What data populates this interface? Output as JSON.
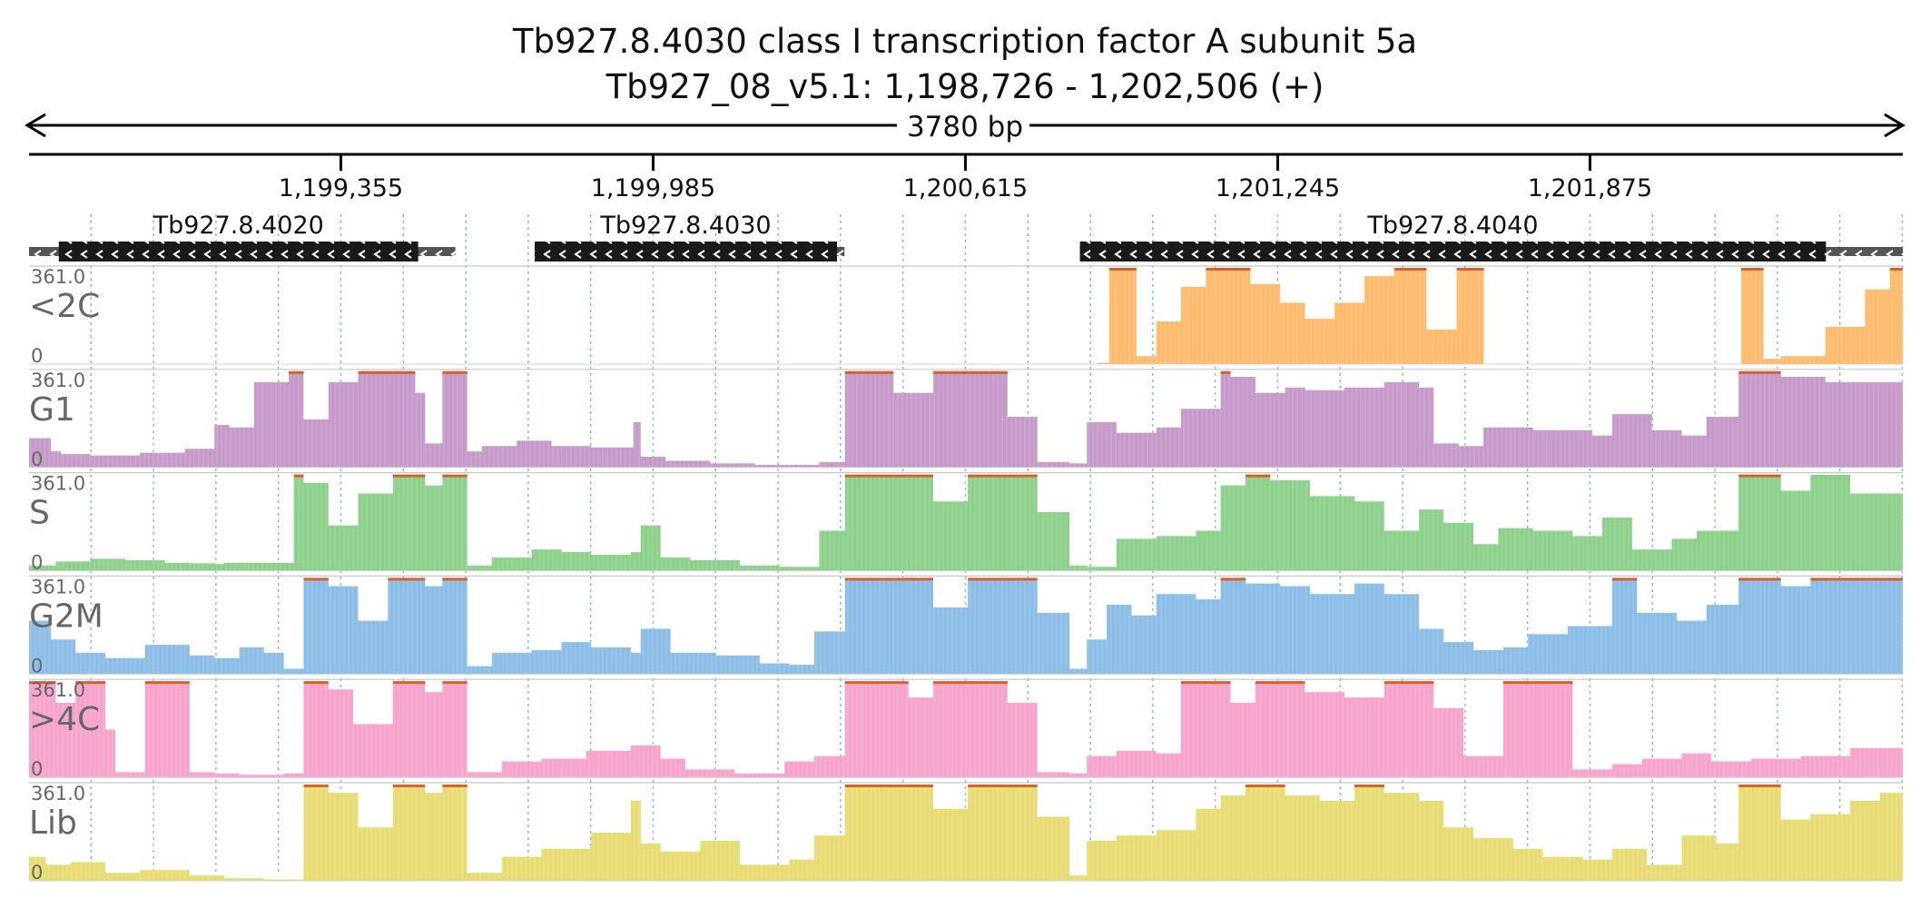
{
  "title": "Tb927.8.4030  class I transcription factor A  subunit 5a",
  "subtitle": "Tb927_08_v5.1: 1,198,726 - 1,202,506 (+)",
  "span_label": "3780 bp",
  "chart_data": {
    "type": "bar",
    "genomic_range": [
      1198726,
      1202506
    ],
    "x_ticks": [
      1199355,
      1199985,
      1200615,
      1201245,
      1201875
    ],
    "x_tick_labels": [
      "1,199,355",
      "1,199,985",
      "1,200,615",
      "1,201,245",
      "1,201,875"
    ],
    "genes": [
      {
        "name": "Tb927.8.4020",
        "utr": [
          1198726,
          1199586
        ],
        "cds": [
          1198786,
          1199511
        ],
        "strand": "-"
      },
      {
        "name": "Tb927.8.4030",
        "utr": [
          1199746,
          1200371
        ],
        "cds": [
          1199746,
          1200356
        ],
        "strand": "-"
      },
      {
        "name": "Tb927.8.4040",
        "utr": [
          1200846,
          1202506
        ],
        "cds": [
          1200846,
          1202351
        ],
        "strand": "-"
      }
    ],
    "ylim": [
      0,
      361.0
    ],
    "y_max_label": "361.0",
    "y_min_label": "0",
    "series": [
      {
        "name": "<2C",
        "color": "#fdbb6d",
        "clip_color": "#d7612a",
        "segments": [
          {
            "x": [
              1200766,
              1200866,
              1200880,
              1201150,
              1201300,
              1201400,
              1201440,
              1201500,
              1201560
            ],
            "y": [
              0,
              0,
              5,
              8,
              6,
              5,
              4,
              3,
              0
            ]
          },
          {
            "x": [
              1200826,
              1200900,
              1200905,
              1200915,
              1200960,
              1201000,
              1201050,
              1201100,
              1201140,
              1201190,
              1201250,
              1201300,
              1201360,
              1201420,
              1201480,
              1201530,
              1201545,
              1201600,
              1201606,
              1201660,
              1201661
            ],
            "y": [
              0,
              0,
              361,
              361,
              30,
              160,
              290,
              361,
              361,
              300,
              230,
              170,
              230,
              330,
              361,
              361,
              130,
              130,
              361,
              361,
              0
            ]
          },
          {
            "x": [
              1202176,
              1202180,
              1202220,
              1202225,
              1202260,
              1202350,
              1202430,
              1202480,
              1202506
            ],
            "y": [
              0,
              361,
              361,
              20,
              30,
              140,
              280,
              361,
              361
            ]
          }
        ]
      },
      {
        "name": "G1",
        "color": "#c59ac9",
        "clip_color": "#d7612a",
        "x": [
          1198726,
          1198770,
          1198790,
          1198850,
          1198950,
          1199040,
          1199100,
          1199130,
          1199180,
          1199250,
          1199280,
          1199330,
          1199390,
          1199460,
          1199505,
          1199525,
          1199560,
          1199600,
          1199610,
          1199640,
          1199710,
          1199780,
          1199860,
          1199945,
          1199960,
          1200010,
          1200100,
          1200190,
          1200320,
          1200372,
          1200390,
          1200470,
          1200550,
          1200620,
          1200700,
          1200760,
          1200825,
          1200860,
          1200920,
          1201000,
          1201050,
          1201130,
          1201150,
          1201200,
          1201260,
          1201300,
          1201380,
          1201460,
          1201530,
          1201560,
          1201610,
          1201660,
          1201760,
          1201880,
          1201920,
          1202000,
          1202060,
          1202110,
          1202175,
          1202260,
          1202350,
          1202506
        ],
        "y": [
          110,
          60,
          50,
          45,
          55,
          70,
          160,
          150,
          320,
          361,
          180,
          320,
          361,
          361,
          280,
          90,
          361,
          361,
          60,
          80,
          100,
          80,
          75,
          170,
          40,
          25,
          15,
          10,
          20,
          361,
          361,
          280,
          361,
          361,
          190,
          20,
          15,
          170,
          130,
          150,
          220,
          361,
          340,
          280,
          300,
          290,
          300,
          320,
          300,
          90,
          80,
          150,
          140,
          120,
          200,
          140,
          120,
          190,
          361,
          340,
          320,
          361
        ]
      },
      {
        "name": "S",
        "color": "#8dd08c",
        "clip_color": "#d7612a",
        "x": [
          1198726,
          1198780,
          1198850,
          1198920,
          1199000,
          1199050,
          1199100,
          1199120,
          1199140,
          1199260,
          1199280,
          1199330,
          1199390,
          1199460,
          1199505,
          1199525,
          1199560,
          1199600,
          1199610,
          1199660,
          1199740,
          1199800,
          1199860,
          1199940,
          1199960,
          1200000,
          1200060,
          1200160,
          1200240,
          1200320,
          1200372,
          1200470,
          1200550,
          1200620,
          1200700,
          1200760,
          1200825,
          1200860,
          1200920,
          1201000,
          1201080,
          1201130,
          1201180,
          1201230,
          1201310,
          1201400,
          1201460,
          1201530,
          1201580,
          1201640,
          1201690,
          1201760,
          1201840,
          1201900,
          1201960,
          1202040,
          1202090,
          1202175,
          1202260,
          1202320,
          1202400,
          1202506
        ],
        "y": [
          20,
          35,
          45,
          40,
          30,
          28,
          25,
          30,
          30,
          361,
          330,
          170,
          290,
          361,
          361,
          320,
          361,
          361,
          20,
          50,
          80,
          70,
          60,
          70,
          170,
          50,
          40,
          20,
          15,
          150,
          361,
          361,
          260,
          361,
          361,
          220,
          20,
          15,
          120,
          130,
          150,
          320,
          361,
          340,
          280,
          260,
          150,
          230,
          180,
          100,
          160,
          150,
          130,
          200,
          80,
          120,
          150,
          361,
          300,
          360,
          290,
          361
        ]
      },
      {
        "name": "G2M",
        "color": "#8bbde6",
        "clip_color": "#d7612a",
        "x": [
          1198726,
          1198770,
          1198820,
          1198880,
          1198960,
          1199050,
          1199100,
          1199150,
          1199200,
          1199240,
          1199280,
          1199330,
          1199390,
          1199450,
          1199505,
          1199525,
          1199560,
          1199600,
          1199610,
          1199660,
          1199740,
          1199800,
          1199860,
          1199940,
          1199960,
          1200020,
          1200110,
          1200200,
          1200260,
          1200310,
          1200372,
          1200470,
          1200550,
          1200620,
          1200700,
          1200760,
          1200825,
          1200860,
          1200900,
          1200950,
          1201000,
          1201080,
          1201130,
          1201180,
          1201250,
          1201310,
          1201400,
          1201460,
          1201530,
          1201580,
          1201640,
          1201700,
          1201750,
          1201830,
          1201920,
          1201970,
          1202050,
          1202110,
          1202175,
          1202260,
          1202320,
          1202400,
          1202506
        ],
        "y": [
          200,
          130,
          80,
          60,
          110,
          70,
          60,
          100,
          80,
          20,
          361,
          330,
          200,
          361,
          361,
          330,
          361,
          361,
          30,
          80,
          90,
          120,
          100,
          80,
          170,
          80,
          70,
          40,
          35,
          160,
          361,
          361,
          250,
          361,
          361,
          230,
          20,
          130,
          260,
          220,
          300,
          280,
          361,
          340,
          330,
          300,
          340,
          300,
          170,
          120,
          90,
          100,
          150,
          180,
          361,
          230,
          200,
          260,
          361,
          330,
          361,
          361,
          361
        ]
      },
      {
        "name": ">4C",
        "color": "#f6a4cb",
        "clip_color": "#d7612a",
        "x": [
          1198726,
          1198780,
          1198820,
          1198880,
          1198900,
          1198960,
          1199000,
          1199050,
          1199100,
          1199150,
          1199240,
          1199280,
          1199330,
          1199380,
          1199460,
          1199505,
          1199525,
          1199560,
          1199600,
          1199610,
          1199680,
          1199760,
          1199850,
          1199940,
          1200000,
          1200050,
          1200150,
          1200250,
          1200310,
          1200372,
          1200440,
          1200500,
          1200550,
          1200620,
          1200700,
          1200760,
          1200825,
          1200860,
          1200920,
          1201000,
          1201050,
          1201090,
          1201150,
          1201200,
          1201250,
          1201300,
          1201380,
          1201460,
          1201530,
          1201560,
          1201620,
          1201700,
          1201760,
          1201840,
          1201920,
          1201980,
          1202060,
          1202120,
          1202200,
          1202300,
          1202400,
          1202506
        ],
        "y": [
          361,
          280,
          361,
          180,
          20,
          361,
          361,
          20,
          15,
          10,
          15,
          361,
          330,
          200,
          361,
          361,
          320,
          361,
          361,
          20,
          60,
          70,
          100,
          120,
          70,
          30,
          15,
          60,
          80,
          361,
          361,
          300,
          361,
          361,
          280,
          20,
          15,
          80,
          100,
          90,
          361,
          361,
          280,
          361,
          361,
          320,
          300,
          361,
          361,
          260,
          80,
          361,
          361,
          30,
          50,
          70,
          90,
          60,
          70,
          80,
          110,
          60
        ]
      },
      {
        "name": "Lib",
        "color": "#e7dc74",
        "clip_color": "#d7612a",
        "x": [
          1198726,
          1198760,
          1198810,
          1198880,
          1198950,
          1199050,
          1199120,
          1199200,
          1199240,
          1199280,
          1199330,
          1199390,
          1199460,
          1199505,
          1199525,
          1199560,
          1199600,
          1199610,
          1199680,
          1199760,
          1199860,
          1199940,
          1199960,
          1200000,
          1200080,
          1200160,
          1200260,
          1200310,
          1200372,
          1200470,
          1200550,
          1200620,
          1200700,
          1200760,
          1200825,
          1200860,
          1200920,
          1201000,
          1201080,
          1201130,
          1201180,
          1201260,
          1201330,
          1201400,
          1201460,
          1201530,
          1201580,
          1201640,
          1201720,
          1201780,
          1201860,
          1201920,
          1201990,
          1202060,
          1202130,
          1202175,
          1202260,
          1202320,
          1202400,
          1202460,
          1202506
        ],
        "y": [
          90,
          60,
          70,
          30,
          40,
          20,
          10,
          5,
          5,
          361,
          330,
          200,
          361,
          361,
          330,
          361,
          361,
          30,
          90,
          120,
          180,
          300,
          140,
          110,
          150,
          60,
          80,
          170,
          361,
          361,
          270,
          361,
          361,
          240,
          20,
          150,
          170,
          190,
          270,
          320,
          361,
          320,
          300,
          361,
          330,
          300,
          200,
          160,
          120,
          90,
          80,
          120,
          60,
          170,
          140,
          361,
          230,
          250,
          300,
          330,
          361
        ]
      }
    ]
  }
}
